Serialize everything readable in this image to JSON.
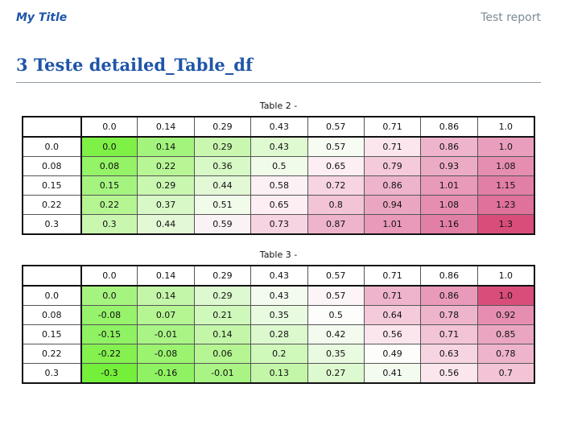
{
  "header": {
    "title": "My Title",
    "report_label": "Test report"
  },
  "section": {
    "heading": "3 Teste detailed_Table_df"
  },
  "tables": [
    {
      "caption": "Table 2 -",
      "columns": [
        "0.0",
        "0.14",
        "0.29",
        "0.43",
        "0.57",
        "0.71",
        "0.86",
        "1.0"
      ],
      "rows": [
        {
          "label": "0.0",
          "cells": [
            "0.0",
            "0.14",
            "0.29",
            "0.43",
            "0.57",
            "0.71",
            "0.86",
            "1.0"
          ],
          "colors": [
            "#7ef046",
            "#a3f47c",
            "#c9f7b0",
            "#dffad1",
            "#f7fcf3",
            "#fbe6ee",
            "#eeb4cc",
            "#ea9ebd"
          ]
        },
        {
          "label": "0.08",
          "cells": [
            "0.08",
            "0.22",
            "0.36",
            "0.5",
            "0.65",
            "0.79",
            "0.93",
            "1.08"
          ],
          "colors": [
            "#94f367",
            "#b7f595",
            "#d6f9c5",
            "#f0fbe9",
            "#fdeef4",
            "#f5cada",
            "#ecabc4",
            "#e68eb1"
          ]
        },
        {
          "label": "0.15",
          "cells": [
            "0.15",
            "0.29",
            "0.44",
            "0.58",
            "0.72",
            "0.86",
            "1.01",
            "1.15"
          ],
          "colors": [
            "#a6f480",
            "#c9f7b0",
            "#e3f9d6",
            "#fbf0f4",
            "#f7d4e1",
            "#eeb4cc",
            "#e999b9",
            "#e27fa6"
          ]
        },
        {
          "label": "0.22",
          "cells": [
            "0.22",
            "0.37",
            "0.51",
            "0.65",
            "0.8",
            "0.94",
            "1.08",
            "1.23"
          ],
          "colors": [
            "#b5f592",
            "#d8f8c7",
            "#f1fbea",
            "#fdeef4",
            "#f3c4d6",
            "#eaa6c1",
            "#e68eb1",
            "#df719b"
          ]
        },
        {
          "label": "0.3",
          "cells": [
            "0.3",
            "0.44",
            "0.59",
            "0.73",
            "0.87",
            "1.01",
            "1.16",
            "1.3"
          ],
          "colors": [
            "#c9f7b0",
            "#e3f9d6",
            "#fbf2f6",
            "#f7d4e1",
            "#eeb4cc",
            "#e999b9",
            "#e27fa6",
            "#d94d7a"
          ]
        }
      ]
    },
    {
      "caption": "Table 3 -",
      "columns": [
        "0.0",
        "0.14",
        "0.29",
        "0.43",
        "0.57",
        "0.71",
        "0.86",
        "1.0"
      ],
      "rows": [
        {
          "label": "0.0",
          "cells": [
            "0.0",
            "0.14",
            "0.29",
            "0.43",
            "0.57",
            "0.71",
            "0.86",
            "1.0"
          ],
          "colors": [
            "#a6f480",
            "#c3f6a8",
            "#ddf9cf",
            "#f3fbee",
            "#fdf4f7",
            "#eeb4cc",
            "#e999b9",
            "#d94d7a"
          ]
        },
        {
          "label": "0.08",
          "cells": [
            "-0.08",
            "0.07",
            "0.21",
            "0.35",
            "0.5",
            "0.64",
            "0.78",
            "0.92"
          ],
          "colors": [
            "#97f36b",
            "#b5f592",
            "#cff8bb",
            "#e8fadf",
            "#fdfdfc",
            "#f5cada",
            "#eeb4cc",
            "#e68eb1"
          ]
        },
        {
          "label": "0.15",
          "cells": [
            "-0.15",
            "-0.01",
            "0.14",
            "0.28",
            "0.42",
            "0.56",
            "0.71",
            "0.85"
          ],
          "colors": [
            "#8ff262",
            "#a9f485",
            "#c3f6a8",
            "#dcf9ce",
            "#f3fbee",
            "#fbe6ee",
            "#f3c4d6",
            "#eaa6c1"
          ]
        },
        {
          "label": "0.22",
          "cells": [
            "-0.22",
            "-0.08",
            "0.06",
            "0.2",
            "0.35",
            "0.49",
            "0.63",
            "0.78"
          ],
          "colors": [
            "#84f14f",
            "#9bf370",
            "#b5f592",
            "#cff8bb",
            "#e8fadf",
            "#fdfdfc",
            "#f7d4e1",
            "#eeb4cc"
          ]
        },
        {
          "label": "0.3",
          "cells": [
            "-0.3",
            "-0.16",
            "-0.01",
            "0.13",
            "0.27",
            "0.41",
            "0.56",
            "0.7"
          ],
          "colors": [
            "#74ef3a",
            "#8ff262",
            "#a9f485",
            "#c3f6a8",
            "#ddf9cf",
            "#f3fbee",
            "#fbe6ee",
            "#f3c4d6"
          ]
        }
      ]
    }
  ]
}
